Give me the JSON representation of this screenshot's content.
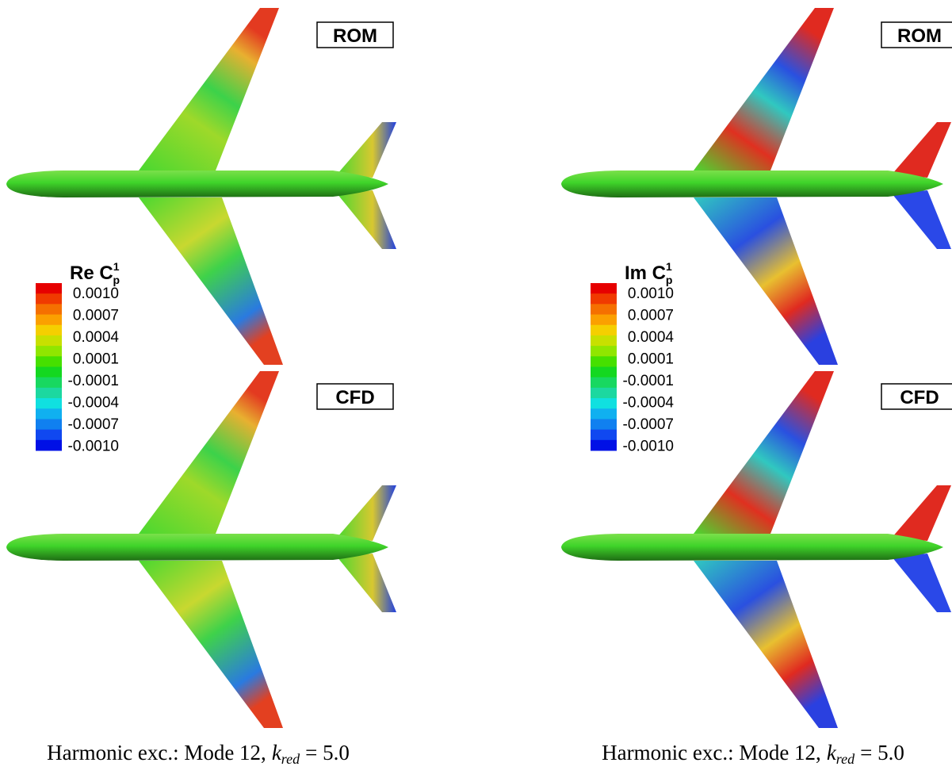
{
  "panels": [
    {
      "top_label": "ROM",
      "bottom_label": "CFD",
      "legend": {
        "title": "Re C",
        "subscript": "p",
        "superscript": "1",
        "labels": [
          "0.0010",
          "0.0007",
          "0.0004",
          "0.0001",
          "-0.0001",
          "-0.0004",
          "-0.0007",
          "-0.0010"
        ]
      },
      "caption": {
        "text": "Harmonic exc.: Mode 12,",
        "symbol": "k",
        "subscript": "red",
        "value": "= 5.0"
      }
    },
    {
      "top_label": "ROM",
      "bottom_label": "CFD",
      "legend": {
        "title": "Im C",
        "subscript": "p",
        "superscript": "1",
        "labels": [
          "0.0010",
          "0.0007",
          "0.0004",
          "0.0001",
          "-0.0001",
          "-0.0004",
          "-0.0007",
          "-0.0010"
        ]
      },
      "caption": {
        "text": "Harmonic exc.: Mode 12,",
        "symbol": "k",
        "subscript": "red",
        "value": "= 5.0"
      }
    }
  ]
}
